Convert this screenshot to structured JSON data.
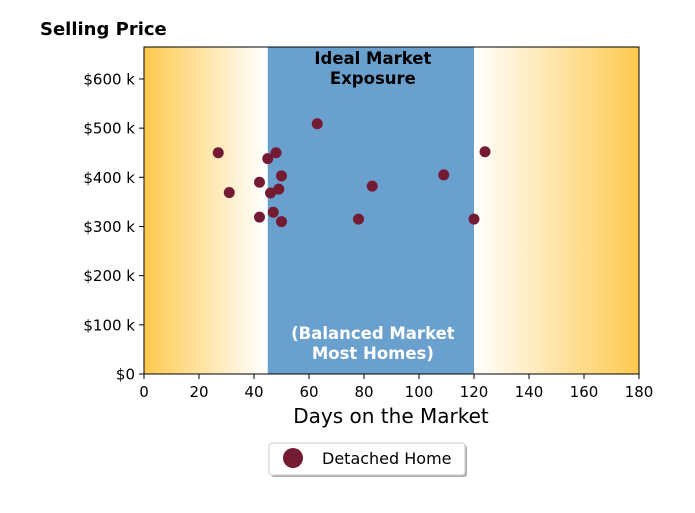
{
  "chart_data": {
    "type": "scatter",
    "title": "Selling Price",
    "xlabel": "Days on the Market",
    "ylabel": "",
    "xlim": [
      0,
      180
    ],
    "ylim": [
      0,
      665000
    ],
    "x_ticks": [
      0,
      20,
      40,
      60,
      80,
      100,
      120,
      140,
      160,
      180
    ],
    "y_ticks": [
      0,
      100000,
      200000,
      300000,
      400000,
      500000,
      600000
    ],
    "y_tick_labels": [
      "$0",
      "$100 k",
      "$200 k",
      "$300 k",
      "$400 k",
      "$500 k",
      "$600 k"
    ],
    "grid": false,
    "legend_placement": "bottom-center",
    "background": {
      "edge_color": "#ffc94f",
      "center_color": "#ffffff",
      "gradient_left": [
        0,
        44
      ],
      "gradient_right": [
        120,
        180
      ]
    },
    "ideal_zone": {
      "x_range": [
        45,
        120
      ],
      "color": "#6aa0cd",
      "label_top": [
        "Ideal Market",
        "Exposure"
      ],
      "label_bottom": [
        "(Balanced Market",
        "Most Homes)"
      ]
    },
    "series": [
      {
        "name": "Detached Home",
        "color": "#751a33",
        "points": [
          {
            "x": 27,
            "y": 450000
          },
          {
            "x": 31,
            "y": 369000
          },
          {
            "x": 42,
            "y": 390000
          },
          {
            "x": 42,
            "y": 319000
          },
          {
            "x": 45,
            "y": 438000
          },
          {
            "x": 46,
            "y": 368000
          },
          {
            "x": 47,
            "y": 329000
          },
          {
            "x": 48,
            "y": 450000
          },
          {
            "x": 49,
            "y": 376000
          },
          {
            "x": 50,
            "y": 403000
          },
          {
            "x": 50,
            "y": 310000
          },
          {
            "x": 63,
            "y": 509000
          },
          {
            "x": 78,
            "y": 315000
          },
          {
            "x": 83,
            "y": 382000
          },
          {
            "x": 109,
            "y": 405000
          },
          {
            "x": 120,
            "y": 315000
          },
          {
            "x": 124,
            "y": 452000
          }
        ]
      }
    ]
  }
}
